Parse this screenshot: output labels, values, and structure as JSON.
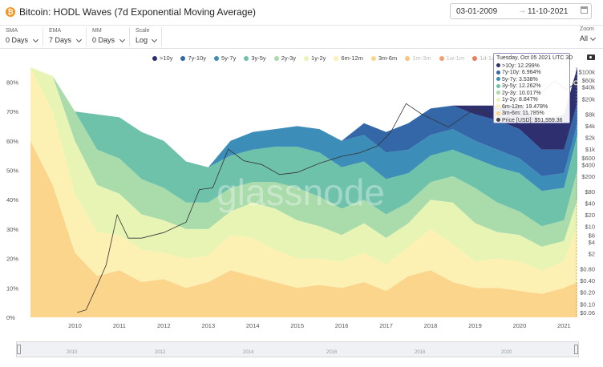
{
  "header": {
    "title": "Bitcoin: HODL Waves (7d Exponential Moving Average)",
    "icon": "bitcoin-icon",
    "date_from": "03-01-2009",
    "date_to": "11-10-2021",
    "date_arrow": "→"
  },
  "controls": [
    {
      "label": "SMA",
      "value": "0 Days"
    },
    {
      "label": "EMA",
      "value": "7 Days"
    },
    {
      "label": "MM",
      "value": "0 Days"
    },
    {
      "label": "Scale",
      "value": "Log"
    }
  ],
  "zoom": {
    "label": "Zoom",
    "value": "All"
  },
  "watermark": "glassnode",
  "legend": [
    {
      "name": ">10y",
      "color": "#2e2f6e"
    },
    {
      "name": "7y-10y",
      "color": "#3467a8"
    },
    {
      "name": "5y-7y",
      "color": "#3c8db7"
    },
    {
      "name": "3y-5y",
      "color": "#6fc2aa"
    },
    {
      "name": "2y-3y",
      "color": "#a9dbab"
    },
    {
      "name": "1y-2y",
      "color": "#e8f4b4"
    },
    {
      "name": "6m-12m",
      "color": "#fcf0b2"
    },
    {
      "name": "3m-6m",
      "color": "#fbd58b"
    },
    {
      "name": "1m-3m",
      "color": "#fac483"
    },
    {
      "name": "1w-1m",
      "color": "#f19f6f"
    },
    {
      "name": "1d-1w",
      "color": "#ea7f5c"
    }
  ],
  "tooltip": {
    "date": "Tuesday, Oct 05 2021 UTC",
    "trailing": "3D",
    "rows": [
      {
        "label": ">10y: 12.299%",
        "color": "#2e2f6e"
      },
      {
        "label": "7y-10y: 6.964%",
        "color": "#3467a8"
      },
      {
        "label": "5y-7y: 3.538%",
        "color": "#3c8db7"
      },
      {
        "label": "3y-5y: 12.262%",
        "color": "#6fc2aa"
      },
      {
        "label": "2y-3y: 10.017%",
        "color": "#a9dbab"
      },
      {
        "label": "1y-2y: 8.847%",
        "color": "#e8f4b4"
      },
      {
        "label": "6m-12m: 19.478%",
        "color": "#fcf0b2"
      },
      {
        "label": "3m-6m: 11.785%",
        "color": "#fbd58b"
      },
      {
        "label": "Price [USD]: $51,559.36",
        "color": "#444444"
      }
    ]
  },
  "navigator": {
    "labels": [
      "2010",
      "2012",
      "2014",
      "2016",
      "2018",
      "2020"
    ]
  },
  "chart_data": {
    "type": "area",
    "title": "Bitcoin: HODL Waves (7d Exponential Moving Average)",
    "x": [
      2009.5,
      2010.0,
      2010.5,
      2011.0,
      2011.5,
      2012.0,
      2012.5,
      2013.0,
      2013.5,
      2014.0,
      2014.5,
      2015.0,
      2015.5,
      2016.0,
      2016.5,
      2017.0,
      2017.5,
      2018.0,
      2018.5,
      2019.0,
      2019.5,
      2020.0,
      2020.5,
      2021.0,
      2021.5,
      2021.8
    ],
    "xlim": [
      2009.5,
      2021.8
    ],
    "xticks": [
      "2010",
      "2011",
      "2012",
      "2013",
      "2014",
      "2015",
      "2016",
      "2017",
      "2018",
      "2019",
      "2020",
      "2021"
    ],
    "ylim_left": [
      0,
      85
    ],
    "yticks_left": [
      "0%",
      "10%",
      "20%",
      "30%",
      "40%",
      "50%",
      "60%",
      "70%",
      "80%"
    ],
    "yticks_right": [
      "$0.06",
      "$0.10",
      "$0.20",
      "$0.40",
      "$0.80",
      "$2",
      "$4",
      "$6",
      "$10",
      "$20",
      "$40",
      "$80",
      "$200",
      "$400",
      "$600",
      "$1k",
      "$2k",
      "$4k",
      "$8k",
      "$20k",
      "$40k",
      "$60k",
      "$100k"
    ],
    "series": [
      {
        "name": "3m-6m",
        "values": [
          60,
          45,
          22,
          14,
          16,
          12,
          13,
          10,
          12,
          16,
          14,
          12,
          10,
          11,
          10,
          12,
          9,
          14,
          16,
          12,
          10,
          10,
          9,
          8,
          10,
          12
        ]
      },
      {
        "name": "6m-12m",
        "values": [
          25,
          25,
          20,
          15,
          12,
          11,
          9,
          10,
          9,
          12,
          13,
          11,
          10,
          9,
          9,
          10,
          9,
          10,
          14,
          13,
          9,
          10,
          10,
          8,
          9,
          19
        ]
      },
      {
        "name": "1y-2y",
        "values": [
          0,
          12,
          18,
          16,
          14,
          12,
          11,
          10,
          9,
          8,
          12,
          14,
          13,
          11,
          9,
          10,
          9,
          8,
          10,
          14,
          13,
          9,
          9,
          8,
          7,
          9
        ]
      },
      {
        "name": "2y-3y",
        "values": [
          0,
          0,
          10,
          12,
          12,
          12,
          11,
          9,
          9,
          8,
          7,
          9,
          11,
          10,
          9,
          8,
          8,
          7,
          6,
          9,
          12,
          10,
          8,
          7,
          7,
          10
        ]
      },
      {
        "name": "3y-5y",
        "values": [
          0,
          0,
          0,
          12,
          14,
          16,
          16,
          14,
          12,
          11,
          11,
          12,
          14,
          15,
          14,
          13,
          12,
          10,
          9,
          9,
          10,
          12,
          13,
          12,
          11,
          12
        ]
      },
      {
        "name": "5y-7y",
        "values": [
          0,
          0,
          0,
          0,
          0,
          0,
          0,
          0,
          0,
          5,
          6,
          6,
          7,
          8,
          9,
          9,
          9,
          8,
          7,
          7,
          6,
          6,
          5,
          5,
          5,
          4
        ]
      },
      {
        "name": "7y-10y",
        "values": [
          0,
          0,
          0,
          0,
          0,
          0,
          0,
          0,
          0,
          0,
          0,
          0,
          0,
          0,
          0,
          4,
          7,
          9,
          9,
          8,
          9,
          10,
          10,
          9,
          8,
          7
        ]
      },
      {
        "name": ">10y",
        "values": [
          0,
          0,
          0,
          0,
          0,
          0,
          0,
          0,
          0,
          0,
          0,
          0,
          0,
          0,
          0,
          0,
          0,
          0,
          0,
          0,
          3,
          5,
          8,
          10,
          12,
          12
        ]
      }
    ],
    "price_series": {
      "name": "Price [USD]",
      "x": [
        2010.55,
        2010.75,
        2011.0,
        2011.2,
        2011.45,
        2011.7,
        2012.0,
        2012.5,
        2013.0,
        2013.3,
        2013.6,
        2013.95,
        2014.3,
        2014.7,
        2015.1,
        2015.5,
        2016.0,
        2016.5,
        2016.9,
        2017.3,
        2017.6,
        2017.95,
        2018.3,
        2018.9,
        2019.5,
        2019.9,
        2020.2,
        2020.6,
        2021.0,
        2021.3,
        2021.55,
        2021.77
      ],
      "values": [
        0.06,
        0.07,
        0.3,
        1,
        20,
        5,
        5,
        7,
        13,
        90,
        100,
        1000,
        500,
        400,
        220,
        250,
        430,
        650,
        800,
        1200,
        2700,
        15000,
        8000,
        3700,
        11000,
        7300,
        6000,
        9500,
        30000,
        58000,
        34000,
        51559.36
      ]
    }
  }
}
